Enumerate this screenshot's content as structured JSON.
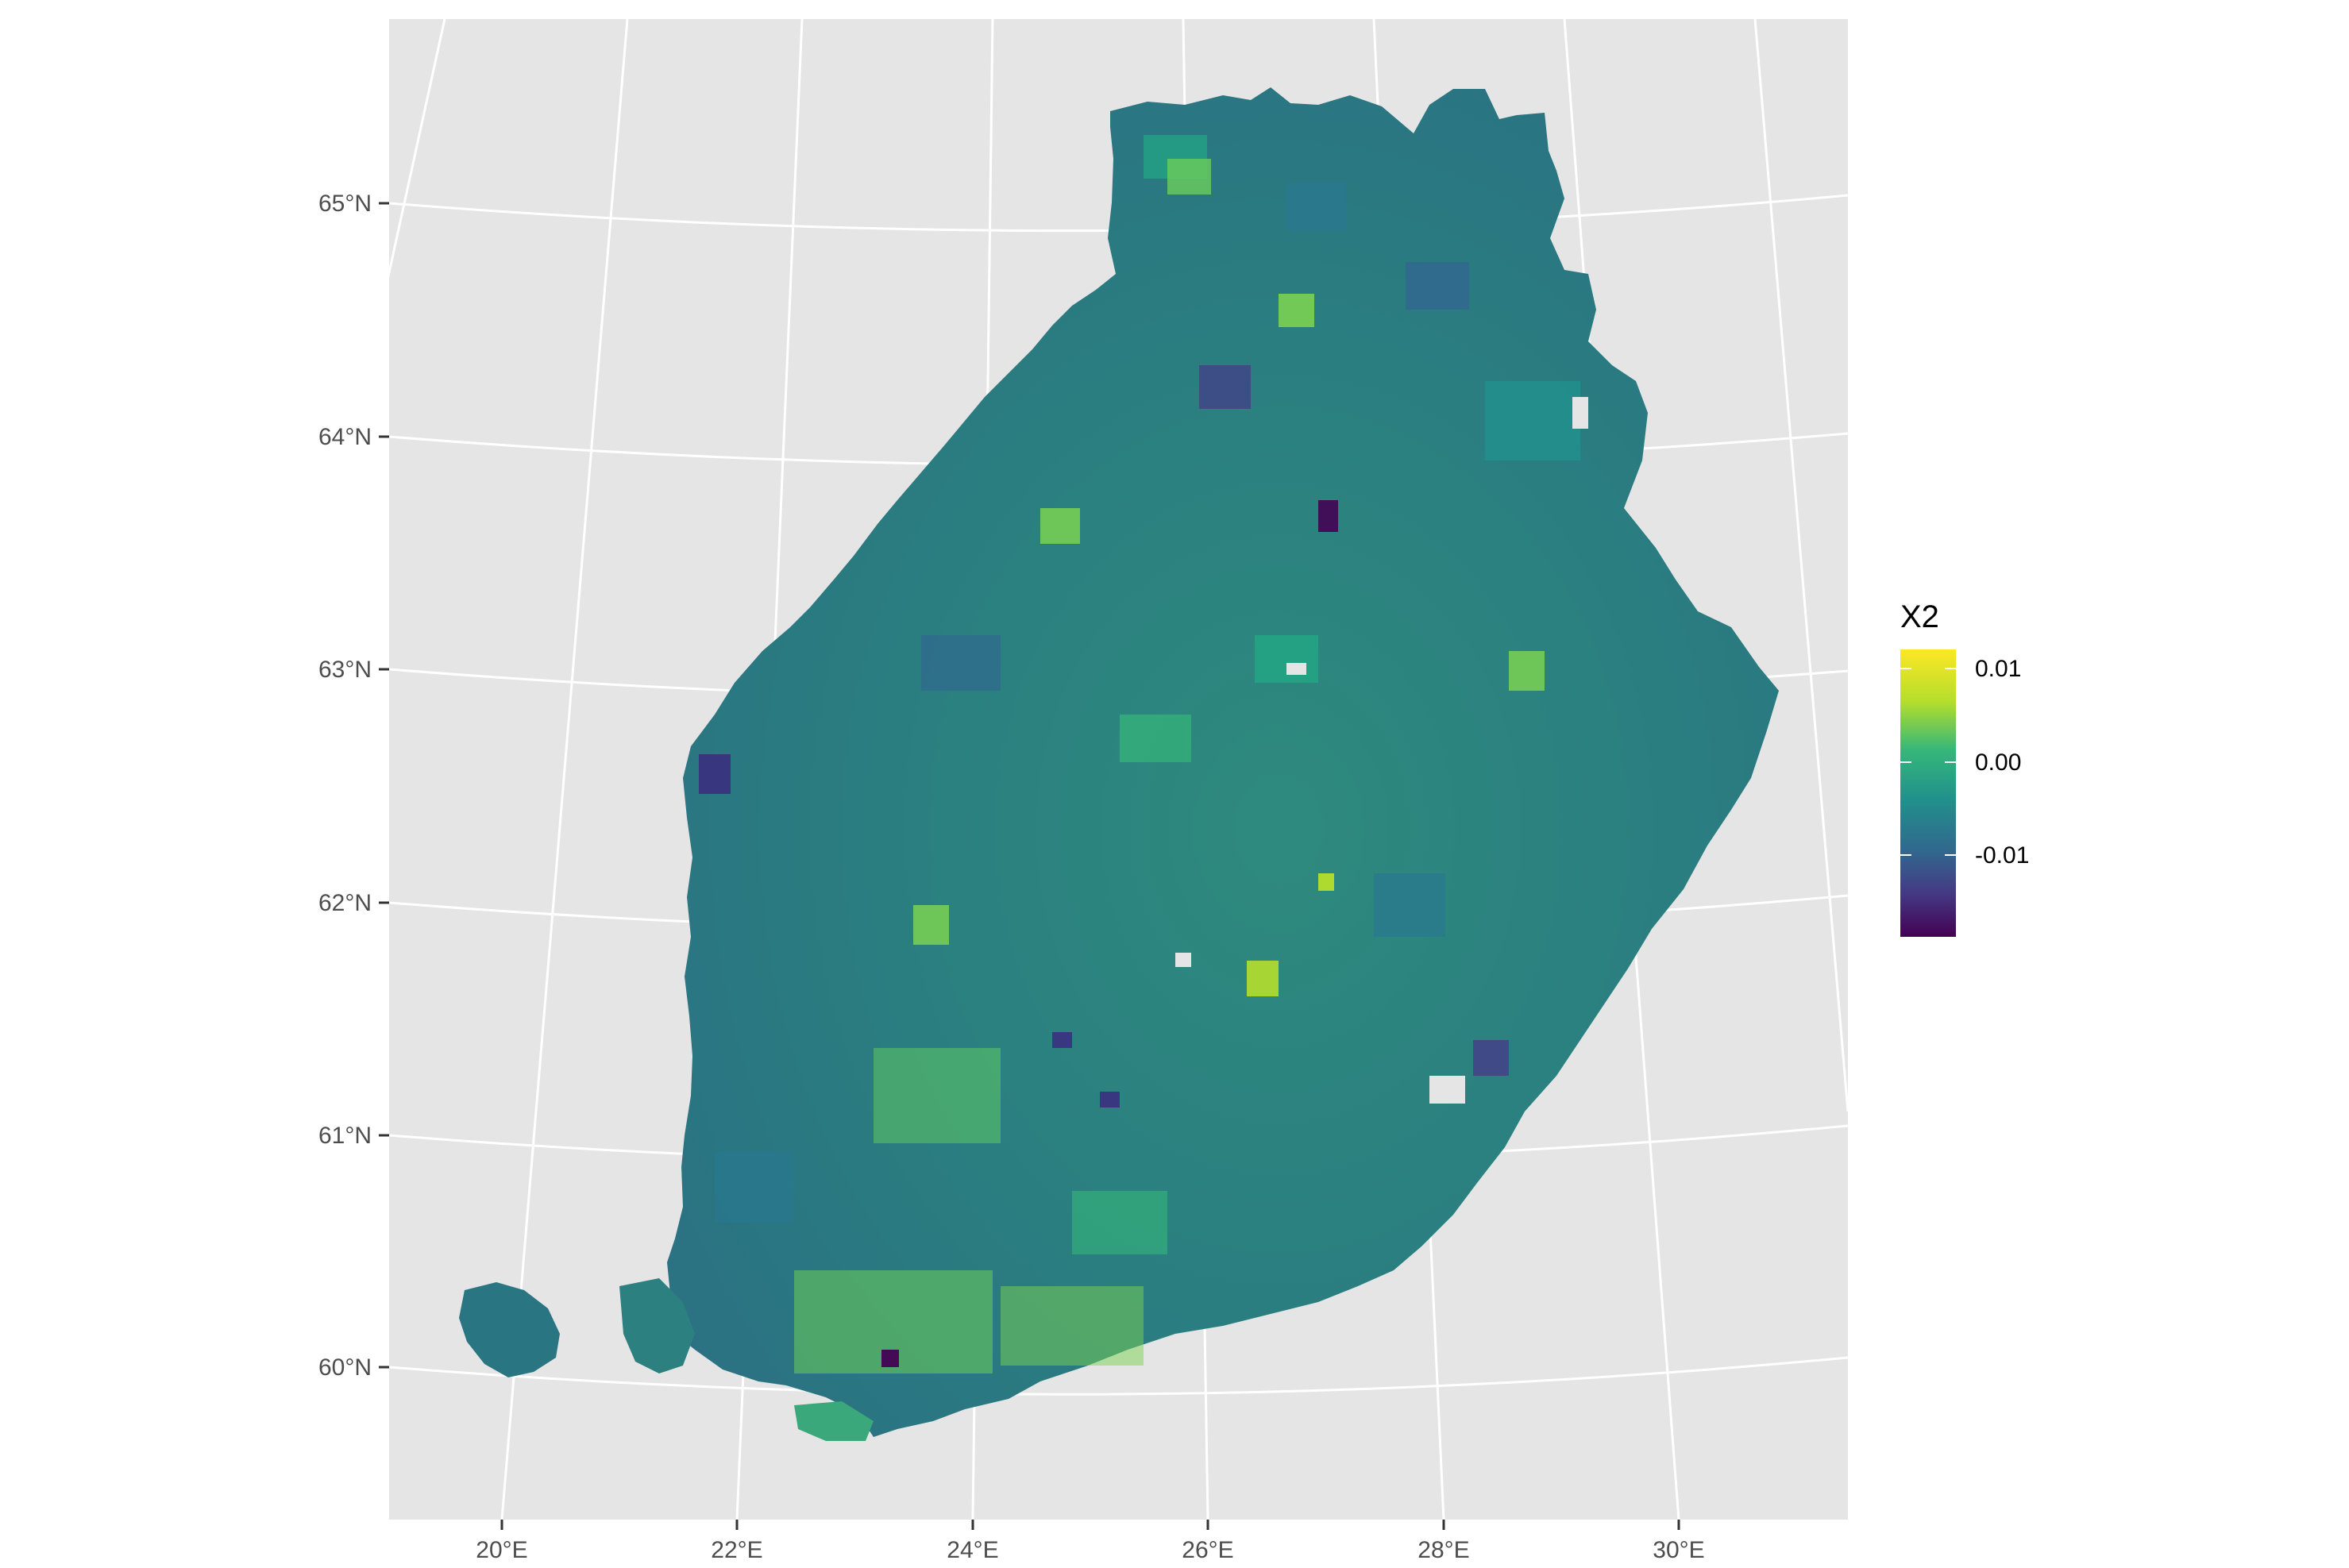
{
  "map": {
    "lat_ticks": [
      "60°N",
      "61°N",
      "62°N",
      "63°N",
      "64°N",
      "65°N"
    ],
    "lon_ticks": [
      "20°E",
      "22°E",
      "24°E",
      "26°E",
      "28°E",
      "30°E"
    ],
    "legend": {
      "title": "X2",
      "labels": [
        "0.01",
        "0.00",
        "-0.01"
      ],
      "colors": [
        "#fde725",
        "#7ad151",
        "#22a884",
        "#2a788e",
        "#414487",
        "#440154"
      ]
    },
    "background_color": "#e5e5e5",
    "grid_color": "#ffffff"
  }
}
